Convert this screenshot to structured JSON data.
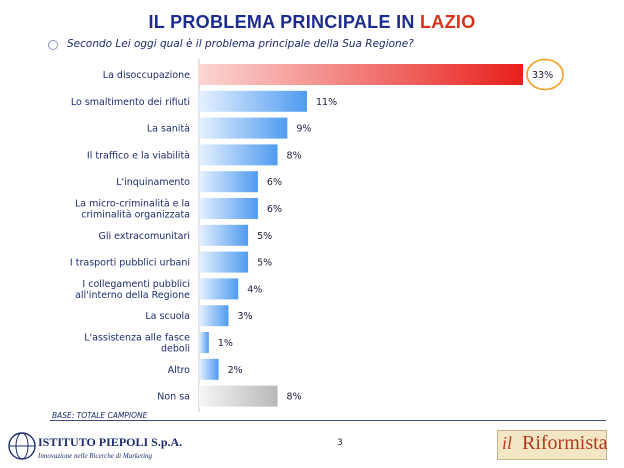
{
  "header": {
    "title_main": "IL PROBLEMA PRINCIPALE IN",
    "title_accent": "LAZIO",
    "question": "Secondo Lei oggi qual è il problema principale della Sua Regione?"
  },
  "chart_data": {
    "type": "bar",
    "orientation": "horizontal",
    "categories": [
      [
        "La disoccupazione"
      ],
      [
        "Lo smaltimento dei rifiuti"
      ],
      [
        "La sanità"
      ],
      [
        "Il traffico e la viabilità"
      ],
      [
        "L'inquinamento"
      ],
      [
        "La micro-criminalità e la",
        "criminalità organizzata"
      ],
      [
        "Gli extracomunitari"
      ],
      [
        "I trasporti pubblici urbani"
      ],
      [
        "I collegamenti pubblici",
        "all'interno della Regione"
      ],
      [
        "La scuola"
      ],
      [
        "L'assistenza alle fasce",
        "deboli"
      ],
      [
        "Altro"
      ],
      [
        "Non sa"
      ]
    ],
    "values": [
      33,
      11,
      9,
      8,
      6,
      6,
      5,
      5,
      4,
      3,
      1,
      2,
      8
    ],
    "labels": [
      "33%",
      "11%",
      "9%",
      "8%",
      "6%",
      "6%",
      "5%",
      "5%",
      "4%",
      "3%",
      "1%",
      "2%",
      "8%"
    ],
    "highlight_index": 0,
    "colors": {
      "highlight": "#e8201c",
      "default": "#4f9bf0",
      "non_sa": "#b8b8b8",
      "circle": "#f0a020"
    }
  },
  "footer": {
    "base_note": "BASE: TOTALE CAMPIONE",
    "page_number": "3",
    "left_logo_name": "ISTITUTO PIEPOLI S.p.A.",
    "left_logo_tag": "Innovazione nelle Ricerche di Marketing",
    "right_logo_il": "il",
    "right_logo_name": "Riformista"
  }
}
